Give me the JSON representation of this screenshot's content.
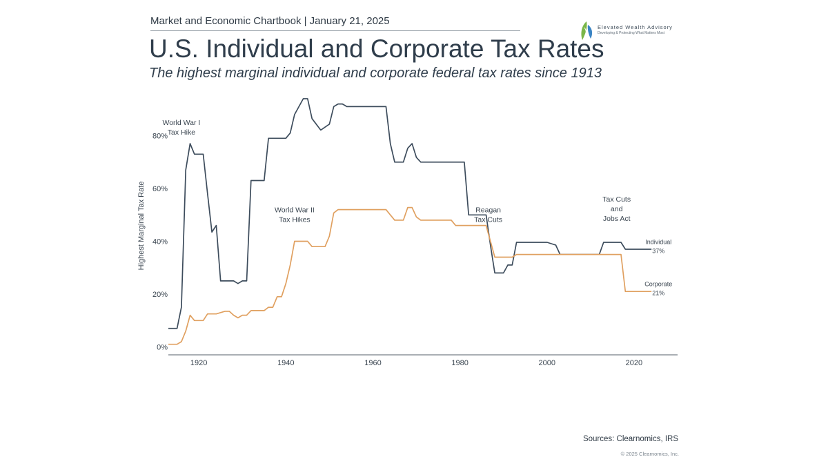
{
  "header": {
    "chartbook": "Market and Economic Chartbook | January 21, 2025",
    "title": "U.S. Individual and Corporate Tax Rates",
    "subtitle": "The highest marginal individual and corporate federal tax rates since 1913"
  },
  "logo": {
    "name": "Elevated Wealth Advisory",
    "tagline": "Developing & Protecting What Matters Most"
  },
  "footer": {
    "sources": "Sources: Clearnomics, IRS",
    "copyright": "© 2025 Clearnomics, Inc."
  },
  "colors": {
    "individual": "#3d4c5c",
    "corporate": "#e0a060",
    "axis": "#555f68",
    "logo_green": "#7ab648",
    "logo_blue": "#3a84c4"
  },
  "chart_data": {
    "type": "line",
    "ylabel": "Highest Marginal Tax Rate",
    "xlabel": "",
    "xlim": [
      1913,
      2030
    ],
    "ylim": [
      -3,
      100
    ],
    "x_ticks": [
      1920,
      1940,
      1960,
      1980,
      2000,
      2020
    ],
    "y_ticks": [
      0,
      20,
      40,
      60,
      80
    ],
    "y_tick_labels": [
      "0%",
      "20%",
      "40%",
      "60%",
      "80%"
    ],
    "grid": false,
    "annotations": [
      {
        "lines": [
          "World War I",
          "Tax Hike"
        ],
        "x": 1916,
        "y": 84
      },
      {
        "lines": [
          "World War II",
          "Tax Hikes"
        ],
        "x": 1942,
        "y": 51
      },
      {
        "lines": [
          "Reagan",
          "Tax Cuts"
        ],
        "x": 1986.5,
        "y": 51
      },
      {
        "lines": [
          "Tax Cuts",
          "and",
          "Jobs Act"
        ],
        "x": 2016,
        "y": 55
      }
    ],
    "series": [
      {
        "name": "Individual",
        "end_label": [
          "Individual",
          "37%"
        ],
        "label_x": 2024,
        "label_y": 39,
        "points": [
          [
            1913,
            7
          ],
          [
            1915,
            7
          ],
          [
            1916,
            15
          ],
          [
            1917,
            67
          ],
          [
            1918,
            77
          ],
          [
            1919,
            73
          ],
          [
            1921,
            73
          ],
          [
            1922,
            58
          ],
          [
            1923,
            43.5
          ],
          [
            1924,
            46
          ],
          [
            1925,
            25
          ],
          [
            1928,
            25
          ],
          [
            1929,
            24
          ],
          [
            1930,
            25
          ],
          [
            1931,
            25
          ],
          [
            1932,
            63
          ],
          [
            1935,
            63
          ],
          [
            1936,
            79
          ],
          [
            1940,
            79
          ],
          [
            1941,
            81
          ],
          [
            1942,
            88
          ],
          [
            1944,
            94
          ],
          [
            1945,
            94
          ],
          [
            1946,
            86.45
          ],
          [
            1948,
            82.13
          ],
          [
            1950,
            84.36
          ],
          [
            1951,
            91
          ],
          [
            1952,
            92
          ],
          [
            1953,
            92
          ],
          [
            1954,
            91
          ],
          [
            1963,
            91
          ],
          [
            1964,
            77
          ],
          [
            1965,
            70
          ],
          [
            1967,
            70
          ],
          [
            1968,
            75.25
          ],
          [
            1969,
            77
          ],
          [
            1970,
            71.75
          ],
          [
            1971,
            70
          ],
          [
            1981,
            70
          ],
          [
            1982,
            50
          ],
          [
            1986,
            50
          ],
          [
            1987,
            38.5
          ],
          [
            1988,
            28
          ],
          [
            1990,
            28
          ],
          [
            1991,
            31
          ],
          [
            1992,
            31
          ],
          [
            1993,
            39.6
          ],
          [
            2000,
            39.6
          ],
          [
            2001,
            39.1
          ],
          [
            2002,
            38.6
          ],
          [
            2003,
            35
          ],
          [
            2012,
            35
          ],
          [
            2013,
            39.6
          ],
          [
            2017,
            39.6
          ],
          [
            2018,
            37
          ],
          [
            2024,
            37
          ]
        ]
      },
      {
        "name": "Corporate",
        "end_label": [
          "Corporate",
          "21%"
        ],
        "label_x": 2024,
        "label_y": 23,
        "points": [
          [
            1913,
            1
          ],
          [
            1915,
            1
          ],
          [
            1916,
            2
          ],
          [
            1917,
            6
          ],
          [
            1918,
            12
          ],
          [
            1919,
            10
          ],
          [
            1921,
            10
          ],
          [
            1922,
            12.5
          ],
          [
            1924,
            12.5
          ],
          [
            1925,
            13
          ],
          [
            1926,
            13.5
          ],
          [
            1927,
            13.5
          ],
          [
            1928,
            12
          ],
          [
            1929,
            11
          ],
          [
            1930,
            12
          ],
          [
            1931,
            12
          ],
          [
            1932,
            13.75
          ],
          [
            1935,
            13.75
          ],
          [
            1936,
            15
          ],
          [
            1937,
            15
          ],
          [
            1938,
            19
          ],
          [
            1939,
            19
          ],
          [
            1940,
            24
          ],
          [
            1941,
            31
          ],
          [
            1942,
            40
          ],
          [
            1945,
            40
          ],
          [
            1946,
            38
          ],
          [
            1949,
            38
          ],
          [
            1950,
            42
          ],
          [
            1951,
            50.75
          ],
          [
            1952,
            52
          ],
          [
            1963,
            52
          ],
          [
            1964,
            50
          ],
          [
            1965,
            48
          ],
          [
            1967,
            48
          ],
          [
            1968,
            52.8
          ],
          [
            1969,
            52.8
          ],
          [
            1970,
            49.2
          ],
          [
            1971,
            48
          ],
          [
            1978,
            48
          ],
          [
            1979,
            46
          ],
          [
            1986,
            46
          ],
          [
            1987,
            40
          ],
          [
            1988,
            34
          ],
          [
            1992,
            34
          ],
          [
            1993,
            35
          ],
          [
            2017,
            35
          ],
          [
            2018,
            21
          ],
          [
            2024,
            21
          ]
        ]
      }
    ]
  }
}
